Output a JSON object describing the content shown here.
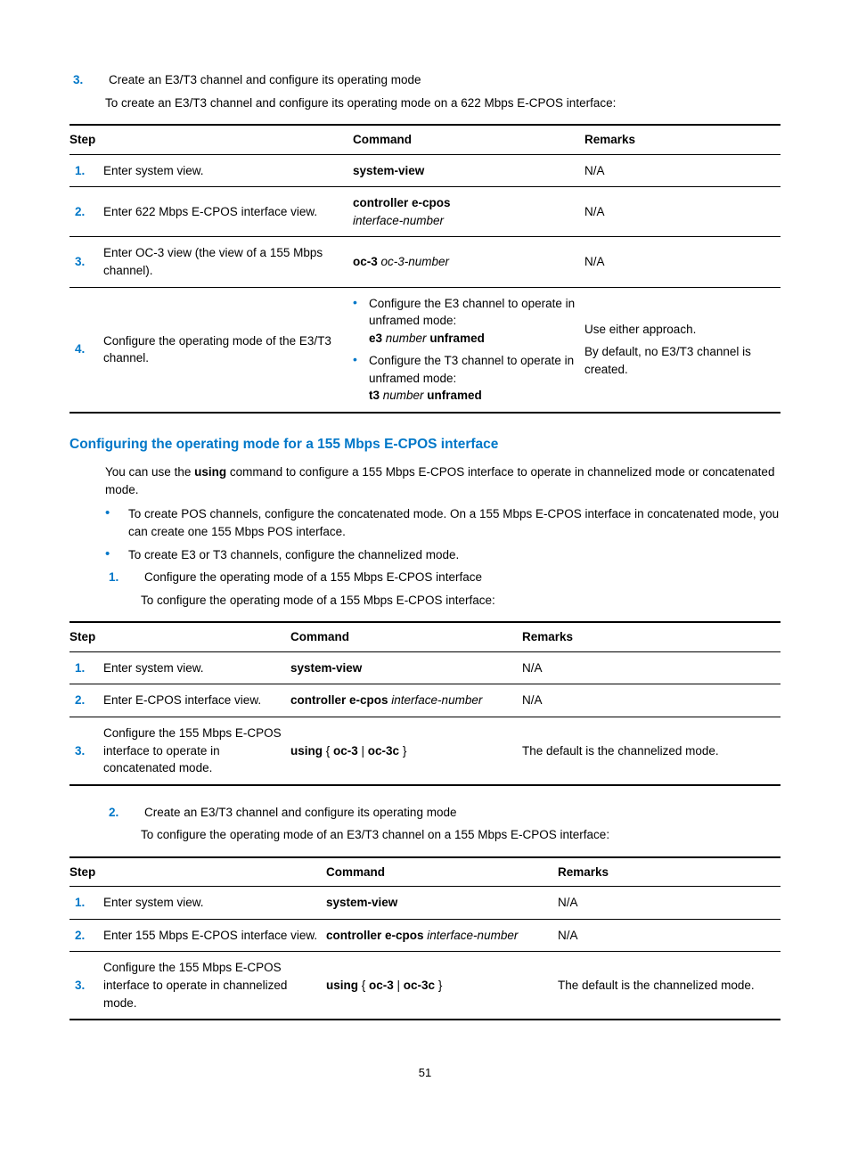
{
  "top": {
    "item_num": "3.",
    "item_text": "Create an E3/T3 channel and configure its operating mode",
    "item_sub": "To create an E3/T3 channel and configure its operating mode on a 622 Mbps E-CPOS interface:"
  },
  "table1": {
    "headers": [
      "Step",
      "Command",
      "Remarks"
    ],
    "col_widths": [
      "280px",
      "260px",
      "auto"
    ],
    "rows": [
      {
        "n": "1.",
        "step": "Enter system view.",
        "cmd": [
          {
            "b": "system-view"
          }
        ],
        "rem": "N/A"
      },
      {
        "n": "2.",
        "step": "Enter 622 Mbps E-CPOS interface view.",
        "cmd": [
          {
            "b": "controller e-cpos"
          },
          {
            "br": true
          },
          {
            "i": "interface-number"
          }
        ],
        "rem": "N/A"
      },
      {
        "n": "3.",
        "step": "Enter OC-3 view (the view of a 155 Mbps channel).",
        "cmd": [
          {
            "b": "oc-3 "
          },
          {
            "i": "oc-3-number"
          }
        ],
        "rem": "N/A"
      }
    ],
    "row4": {
      "n": "4.",
      "step": "Configure the operating mode of the E3/T3 channel.",
      "bul1_pre": "Configure the E3 channel to operate in unframed mode:",
      "bul1_cmd": [
        {
          "b": "e3 "
        },
        {
          "i": "number "
        },
        {
          "b": "unframed"
        }
      ],
      "bul2_pre": "Configure the T3 channel to operate in unframed mode:",
      "bul2_cmd": [
        {
          "b": "t3 "
        },
        {
          "i": "number "
        },
        {
          "b": "unframed"
        }
      ],
      "rem1": "Use either approach.",
      "rem2": "By default, no E3/T3 channel is created."
    }
  },
  "section2": {
    "heading": "Configuring the operating mode for a 155 Mbps E-CPOS interface",
    "intro_pre": "You can use the ",
    "intro_bold": "using",
    "intro_post": " command to configure a 155 Mbps E-CPOS interface to operate in channelized mode or concatenated mode.",
    "b1": "To create POS channels, configure the concatenated mode. On a 155 Mbps E-CPOS interface in concatenated mode, you can create one 155 Mbps POS interface.",
    "b2": "To create E3 or T3 channels, configure the channelized mode.",
    "n1_num": "1.",
    "n1_text": "Configure the operating mode of a 155 Mbps E-CPOS interface",
    "n1_sub": "To configure the operating mode of a 155 Mbps E-CPOS interface:"
  },
  "table2": {
    "headers": [
      "Step",
      "Command",
      "Remarks"
    ],
    "col_widths": [
      "210px",
      "260px",
      "auto"
    ],
    "rows": [
      {
        "n": "1.",
        "step": "Enter system view.",
        "cmd": [
          {
            "b": "system-view"
          }
        ],
        "rem": "N/A"
      },
      {
        "n": "2.",
        "step": "Enter E-CPOS interface view.",
        "cmd": [
          {
            "b": "controller e-cpos "
          },
          {
            "i": "interface-number"
          }
        ],
        "rem": "N/A"
      },
      {
        "n": "3.",
        "step": "Configure the 155 Mbps E-CPOS interface to operate in concatenated mode.",
        "cmd": [
          {
            "b": "using"
          },
          {
            "t": " { "
          },
          {
            "b": "oc-3"
          },
          {
            "t": " | "
          },
          {
            "b": "oc-3c"
          },
          {
            "t": " }"
          }
        ],
        "rem": "The default is the channelized mode."
      }
    ]
  },
  "mid": {
    "n2_num": "2.",
    "n2_text": "Create an E3/T3 channel and configure its operating mode",
    "n2_sub": "To configure the operating mode of an E3/T3 channel on a 155 Mbps E-CPOS interface:"
  },
  "table3": {
    "headers": [
      "Step",
      "Command",
      "Remarks"
    ],
    "col_widths": [
      "250px",
      "260px",
      "auto"
    ],
    "rows": [
      {
        "n": "1.",
        "step": "Enter system view.",
        "cmd": [
          {
            "b": "system-view"
          }
        ],
        "rem": "N/A"
      },
      {
        "n": "2.",
        "step": "Enter 155 Mbps E-CPOS interface view.",
        "cmd": [
          {
            "b": "controller e-cpos "
          },
          {
            "i": "interface-number"
          }
        ],
        "rem": "N/A"
      },
      {
        "n": "3.",
        "step": "Configure the 155 Mbps E-CPOS interface to operate in channelized mode.",
        "cmd": [
          {
            "b": "using"
          },
          {
            "t": " { "
          },
          {
            "b": "oc-3"
          },
          {
            "t": " | "
          },
          {
            "b": "oc-3c"
          },
          {
            "t": " }"
          }
        ],
        "rem": "The default is the channelized mode."
      }
    ]
  },
  "pagenum": "51"
}
